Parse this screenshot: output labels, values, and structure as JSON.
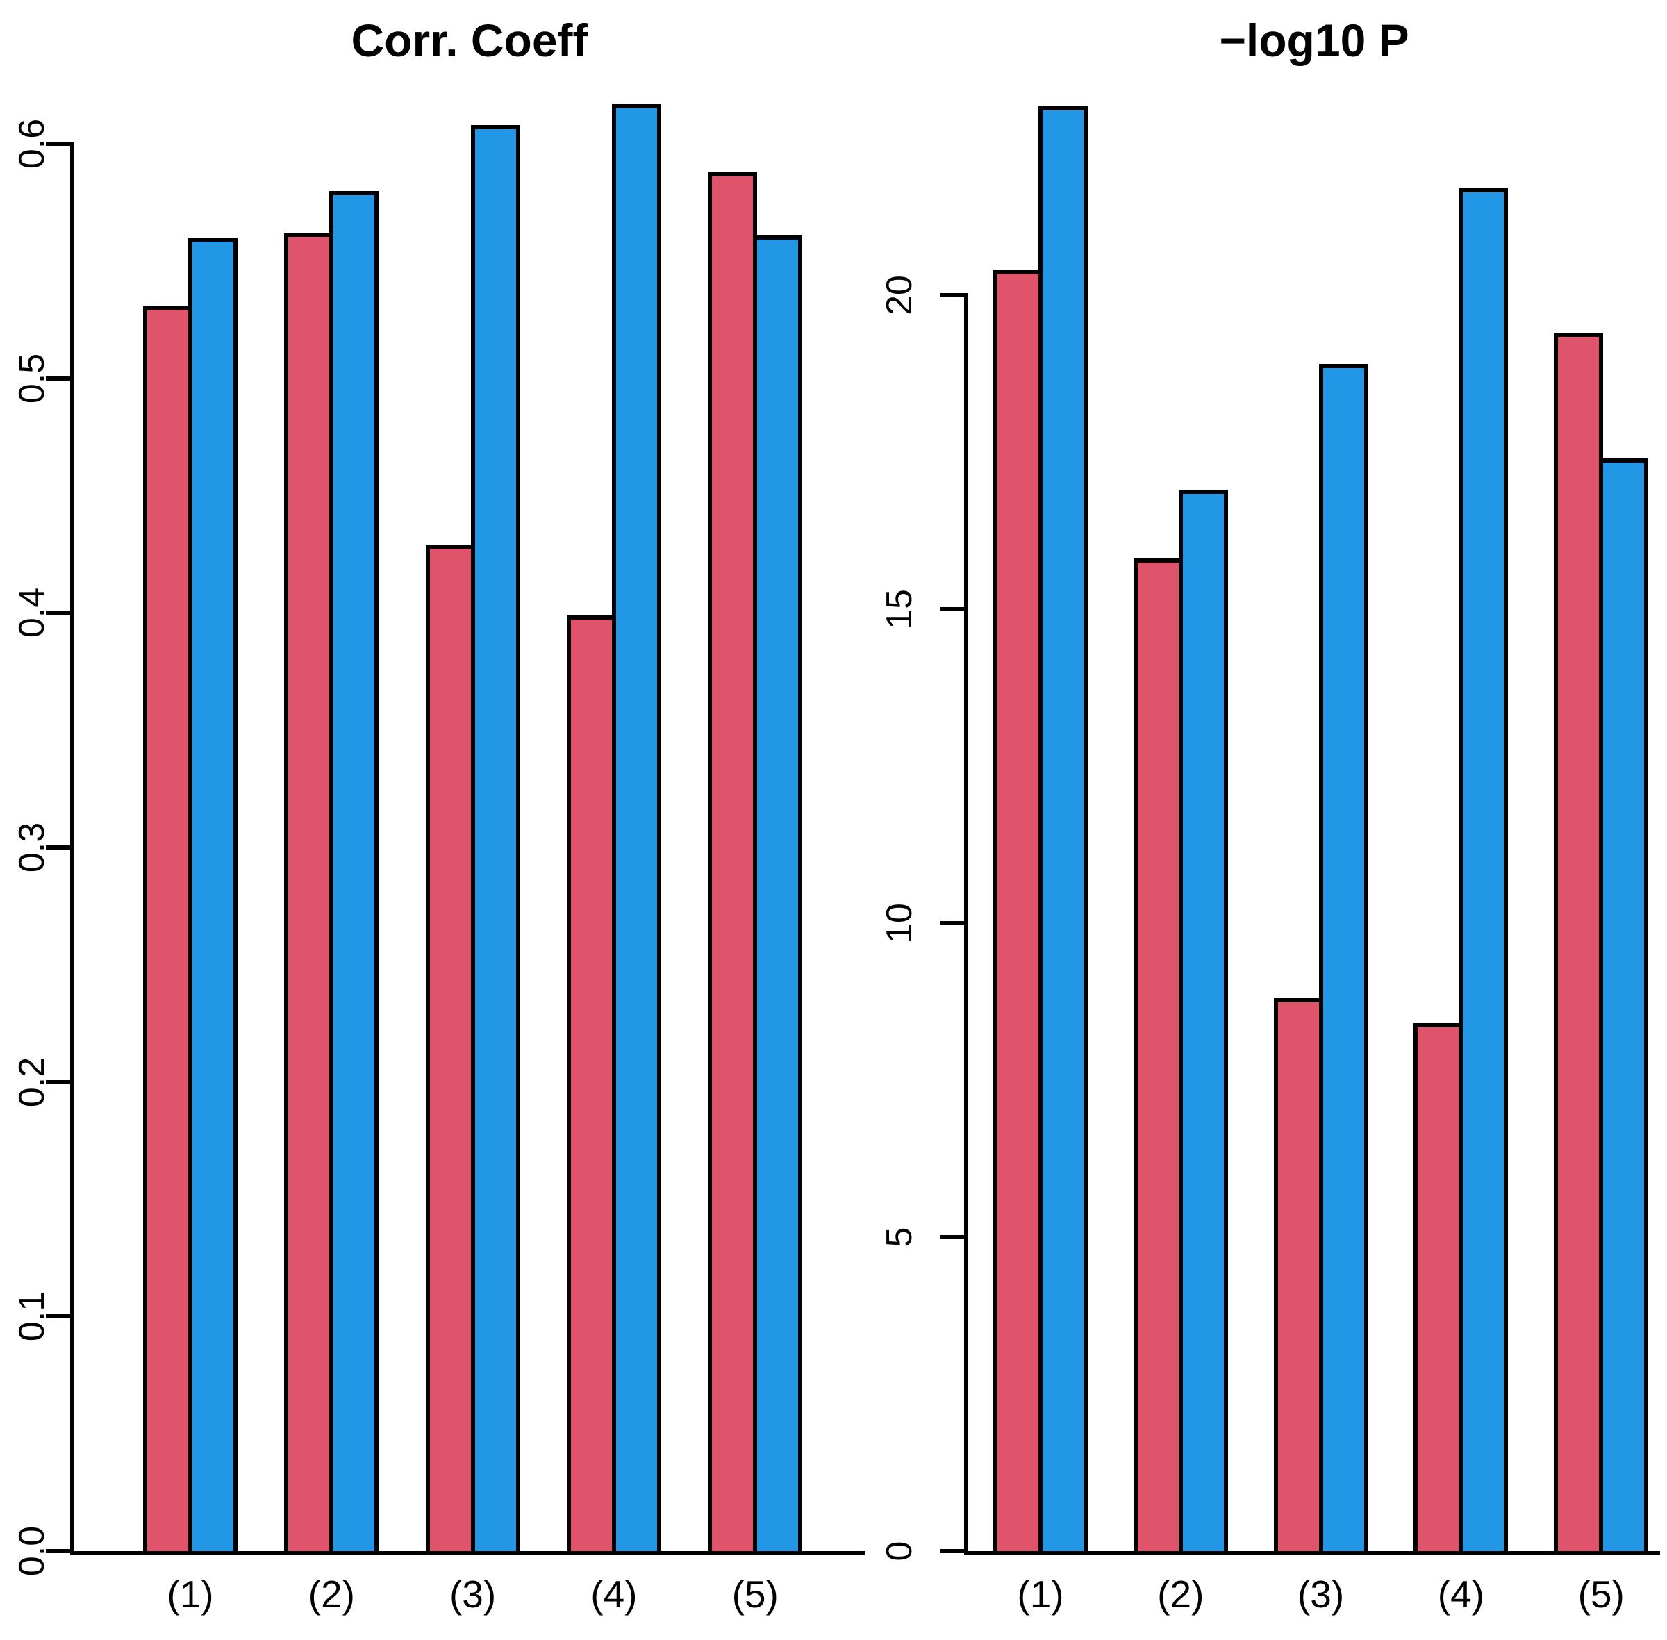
{
  "colors": {
    "bar_red": "#DF536B",
    "bar_blue": "#2297E6",
    "axis": "#000000",
    "background": "#FFFFFF"
  },
  "chart_data": [
    {
      "type": "bar",
      "title": "Corr. Coeff",
      "xlabel": "",
      "ylabel": "",
      "categories": [
        "(1)",
        "(2)",
        "(3)",
        "(4)",
        "(5)"
      ],
      "series": [
        {
          "name": "red",
          "color": "#DF536B",
          "values": [
            0.531,
            0.562,
            0.429,
            0.399,
            0.588
          ]
        },
        {
          "name": "blue",
          "color": "#2297E6",
          "values": [
            0.56,
            0.58,
            0.608,
            0.617,
            0.561
          ]
        }
      ],
      "ylim": [
        0,
        0.632
      ],
      "yticks": [
        0,
        0.1,
        0.2,
        0.3,
        0.4,
        0.5,
        0.6
      ],
      "ytick_labels": [
        "0.0",
        "0.1",
        "0.2",
        "0.3",
        "0.4",
        "0.5",
        "0.6"
      ],
      "grid": false,
      "legend_position": "none"
    },
    {
      "type": "bar",
      "title": "−log10 P",
      "xlabel": "",
      "ylabel": "",
      "categories": [
        "(1)",
        "(2)",
        "(3)",
        "(4)",
        "(5)"
      ],
      "series": [
        {
          "name": "red",
          "color": "#DF536B",
          "values": [
            20.4,
            15.8,
            8.8,
            8.4,
            19.4
          ]
        },
        {
          "name": "blue",
          "color": "#2297E6",
          "values": [
            23.0,
            16.9,
            18.9,
            21.7,
            17.4
          ]
        }
      ],
      "ylim": [
        0,
        23.6
      ],
      "yticks": [
        0,
        5,
        10,
        15,
        20
      ],
      "ytick_labels": [
        "0",
        "5",
        "10",
        "15",
        "20"
      ],
      "grid": false,
      "legend_position": "none"
    }
  ]
}
